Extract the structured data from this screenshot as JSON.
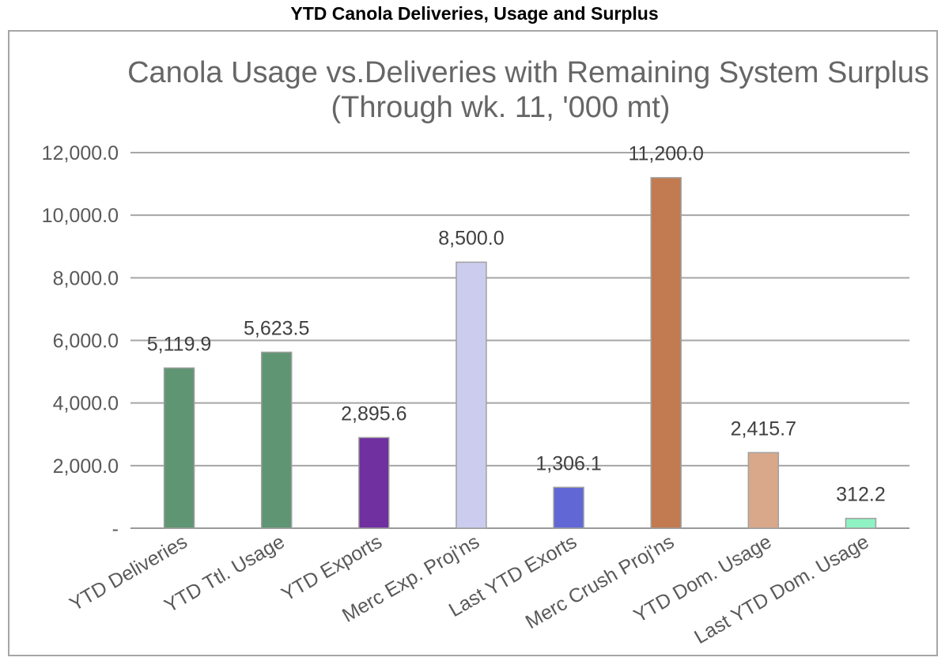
{
  "heading": "YTD Canola Deliveries, Usage and Surplus",
  "chart_data": {
    "type": "bar",
    "title_line1": "Canola Usage vs.Deliveries with Remaining System Surplus",
    "title_line2": "(Through wk. 11,  '000 mt)",
    "categories": [
      "YTD Deliveries",
      "YTD Ttl. Usage",
      "YTD Exports",
      "Merc Exp. Proj'ns",
      "Last YTD Exorts",
      "Merc Crush Proj'ns",
      "YTD Dom. Usage",
      "Last YTD Dom. Usage"
    ],
    "values": [
      5119.9,
      5623.5,
      2895.6,
      8500.0,
      1306.1,
      11200.0,
      2415.7,
      312.2
    ],
    "data_labels": [
      "5,119.9",
      "5,623.5",
      "2,895.6",
      "8,500.0",
      "1,306.1",
      "11,200.0",
      "2,415.7",
      "312.2"
    ],
    "colors": [
      "#5f9573",
      "#5f9573",
      "#7030a0",
      "#ccccee",
      "#6167d4",
      "#c27b50",
      "#d9a88a",
      "#8ff2c2"
    ],
    "ylim": [
      0,
      12000
    ],
    "yticks": [
      0,
      2000,
      4000,
      6000,
      8000,
      10000,
      12000
    ],
    "ytick_labels": [
      "-",
      "2,000.0",
      "4,000.0",
      "6,000.0",
      "8,000.0",
      "10,000.0",
      "12,000.0"
    ],
    "grid": true,
    "legend": "none"
  }
}
